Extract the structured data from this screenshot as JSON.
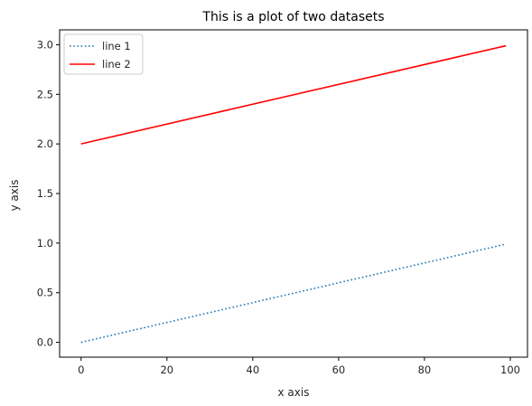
{
  "chart_data": {
    "type": "line",
    "title": "This is a plot of two datasets",
    "xlabel": "x axis",
    "ylabel": "y axis",
    "xlim": [
      -5,
      104
    ],
    "ylim": [
      -0.15,
      3.15
    ],
    "xticks": [
      0,
      20,
      40,
      60,
      80,
      100
    ],
    "xtick_labels": [
      "0",
      "20",
      "40",
      "60",
      "80",
      "100"
    ],
    "yticks": [
      0.0,
      0.5,
      1.0,
      1.5,
      2.0,
      2.5,
      3.0
    ],
    "ytick_labels": [
      "0.0",
      "0.5",
      "1.0",
      "1.5",
      "2.0",
      "2.5",
      "3.0"
    ],
    "grid": false,
    "legend_position": "top-left",
    "series": [
      {
        "name": "line 1",
        "color": "#1f77b4",
        "style": "dotted",
        "x": [
          0,
          99
        ],
        "y": [
          0.0,
          0.99
        ]
      },
      {
        "name": "line 2",
        "color": "#ff0000",
        "style": "solid",
        "x": [
          0,
          99
        ],
        "y": [
          2.0,
          2.99
        ]
      }
    ]
  }
}
